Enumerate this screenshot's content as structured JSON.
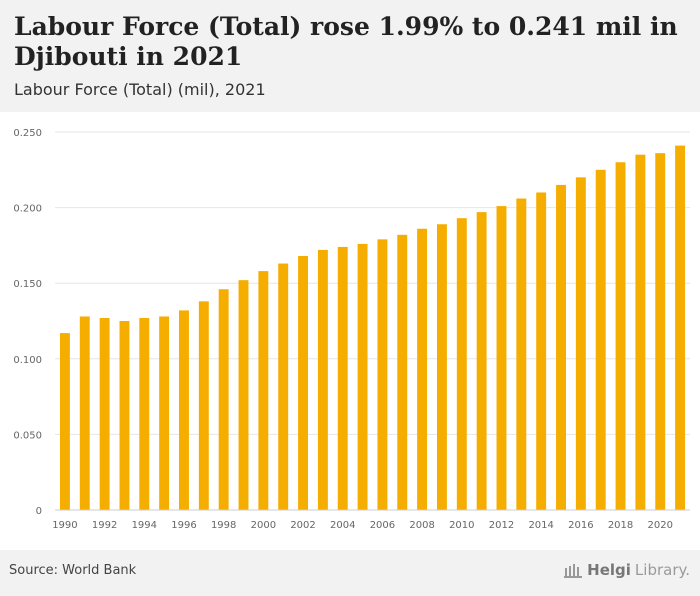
{
  "header": {
    "title": "Labour Force (Total) rose 1.99% to 0.241 mil in Djibouti in 2021",
    "subtitle": "Labour Force (Total) (mil), 2021"
  },
  "footer": {
    "source": "Source: World Bank",
    "brand_part1": "Helgi",
    "brand_part2": "Library."
  },
  "colors": {
    "bar": "#f5ad00",
    "grid": "#e6e6e6",
    "axis_text": "#666666",
    "header_bg": "#f2f2f2"
  },
  "chart_data": {
    "type": "bar",
    "title": "Labour Force (Total) rose 1.99% to 0.241 mil in Djibouti in 2021",
    "subtitle": "Labour Force (Total) (mil), 2021",
    "categories": [
      "1990",
      "1991",
      "1992",
      "1993",
      "1994",
      "1995",
      "1996",
      "1997",
      "1998",
      "1999",
      "2000",
      "2001",
      "2002",
      "2003",
      "2004",
      "2005",
      "2006",
      "2007",
      "2008",
      "2009",
      "2010",
      "2011",
      "2012",
      "2013",
      "2014",
      "2015",
      "2016",
      "2017",
      "2018",
      "2019",
      "2020",
      "2021"
    ],
    "values": [
      0.117,
      0.128,
      0.127,
      0.125,
      0.127,
      0.128,
      0.132,
      0.138,
      0.146,
      0.152,
      0.158,
      0.163,
      0.168,
      0.172,
      0.174,
      0.176,
      0.179,
      0.182,
      0.186,
      0.189,
      0.193,
      0.197,
      0.201,
      0.206,
      0.21,
      0.215,
      0.22,
      0.225,
      0.23,
      0.235,
      0.236,
      0.241
    ],
    "x_tick_labels": [
      "1990",
      "1992",
      "1994",
      "1996",
      "1998",
      "2000",
      "2002",
      "2004",
      "2006",
      "2008",
      "2010",
      "2012",
      "2014",
      "2016",
      "2018",
      "2020"
    ],
    "y_tick_labels": [
      "0",
      "0.050",
      "0.100",
      "0.150",
      "0.200",
      "0.250"
    ],
    "ylim": [
      0,
      0.25
    ],
    "grid": true,
    "legend": "none",
    "xlabel": "",
    "ylabel": ""
  }
}
